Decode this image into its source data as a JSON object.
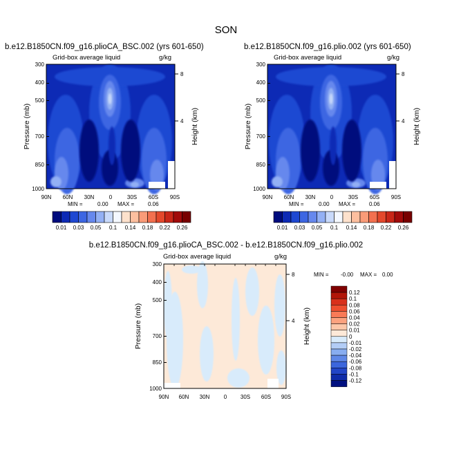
{
  "season": "SON",
  "panels": [
    {
      "id": "left",
      "title": "b.e12.B1850CN.f09_g16.plioCA_BSC.002 (yrs 601-650)",
      "variable": "Grid-box average liquid",
      "units": "g/kg",
      "stats": {
        "min_label": "MIN =",
        "min_value": "0.00",
        "max_label": "MAX =",
        "max_value": "0.06"
      }
    },
    {
      "id": "right",
      "title": "b.e12.B1850CN.f09_g16.plio.002 (yrs 601-650)",
      "variable": "Grid-box average liquid",
      "units": "g/kg",
      "stats": {
        "min_label": "MIN =",
        "min_value": "0.00",
        "max_label": "MAX =",
        "max_value": "0.06"
      }
    },
    {
      "id": "diff",
      "title": "b.e12.B1850CN.f09_g16.plioCA_BSC.002 - b.e12.B1850CN.f09_g16.plio.002",
      "variable": "Grid-box average liquid",
      "units": "g/kg",
      "stats": {
        "min_label": "MIN =",
        "min_value": "-0.00",
        "max_label": "MAX =",
        "max_value": "0.00"
      }
    }
  ],
  "axes": {
    "ylabel": "Pressure (mb)",
    "ylabel_right": "Height (km)",
    "pressure_ticks": [
      "300",
      "400",
      "500",
      "700",
      "850",
      "1000"
    ],
    "pressure_values": [
      300,
      400,
      500,
      700,
      850,
      1000
    ],
    "height_ticks": [
      "8",
      "4"
    ],
    "height_values_km": [
      8,
      4
    ],
    "lat_ticks": [
      "90N",
      "60N",
      "30N",
      "0",
      "30S",
      "60S",
      "90S"
    ],
    "lat_values": [
      90,
      60,
      30,
      0,
      -30,
      -60,
      -90
    ]
  },
  "colorbar_main": {
    "labels": [
      "0.01",
      "0.03",
      "0.05",
      "0.1",
      "0.14",
      "0.18",
      "0.22",
      "0.26"
    ],
    "colors": [
      "#000c7d",
      "#0d2ab5",
      "#1e48d2",
      "#3d66e2",
      "#6688ed",
      "#93b0f4",
      "#c8d9fa",
      "#f4f8ff",
      "#fde1cc",
      "#fcbf9f",
      "#f99b78",
      "#f2704f",
      "#e3482c",
      "#c82618",
      "#a10a0a",
      "#780000"
    ]
  },
  "colorbar_diff": {
    "labels": [
      "0.12",
      "0.1",
      "0.08",
      "0.06",
      "0.04",
      "0.02",
      "0.01",
      "0",
      "-0.01",
      "-0.02",
      "-0.04",
      "-0.06",
      "-0.08",
      "-0.1",
      "-0.12"
    ],
    "colors": [
      "#800000",
      "#b11508",
      "#d8301b",
      "#ee4f2f",
      "#f97a57",
      "#fca27f",
      "#fdc7a9",
      "#fde9d8",
      "#d8ebfb",
      "#b3cdf6",
      "#88adf0",
      "#5f88e7",
      "#3c66dc",
      "#2245c6",
      "#0f2ba8",
      "#001080"
    ]
  },
  "chart_data": [
    {
      "type": "heatmap",
      "title": "b.e12.B1850CN.f09_g16.plioCA_BSC.002 (yrs 601-650)",
      "subtitle": "Grid-box average liquid (g/kg)",
      "xlabel": "",
      "ylabel": "Pressure (mb)",
      "ylabel_right": "Height (km)",
      "xlim": [
        90,
        -90
      ],
      "ylim": [
        1000,
        300
      ],
      "min": 0.0,
      "max": 0.06,
      "features": [
        {
          "lat": 2,
          "p": 500,
          "value": 0.06,
          "desc": "tropical maximum"
        },
        {
          "lat": 50,
          "p": 780,
          "value": 0.03
        },
        {
          "lat": -50,
          "p": 780,
          "value": 0.03
        },
        {
          "lat": 75,
          "p": 950,
          "value": 0.05
        },
        {
          "lat": -25,
          "p": 980,
          "value": 0.04
        }
      ]
    },
    {
      "type": "heatmap",
      "title": "b.e12.B1850CN.f09_g16.plio.002 (yrs 601-650)",
      "subtitle": "Grid-box average liquid (g/kg)",
      "xlabel": "",
      "ylabel": "Pressure (mb)",
      "ylabel_right": "Height (km)",
      "xlim": [
        90,
        -90
      ],
      "ylim": [
        1000,
        300
      ],
      "min": 0.0,
      "max": 0.06,
      "features": [
        {
          "lat": 2,
          "p": 500,
          "value": 0.06,
          "desc": "tropical maximum"
        },
        {
          "lat": 50,
          "p": 780,
          "value": 0.03
        },
        {
          "lat": -50,
          "p": 780,
          "value": 0.03
        },
        {
          "lat": 75,
          "p": 950,
          "value": 0.05
        },
        {
          "lat": -25,
          "p": 980,
          "value": 0.04
        }
      ]
    },
    {
      "type": "heatmap",
      "title": "b.e12.B1850CN.f09_g16.plioCA_BSC.002 - b.e12.B1850CN.f09_g16.plio.002",
      "subtitle": "Grid-box average liquid (g/kg)",
      "xlabel": "",
      "ylabel": "Pressure (mb)",
      "ylabel_right": "Height (km)",
      "xlim": [
        90,
        -90
      ],
      "ylim": [
        1000,
        300
      ],
      "min": -0.0,
      "max": 0.0,
      "features": [
        {
          "lat": 60,
          "p": 650,
          "value": -0.005
        },
        {
          "lat": 5,
          "p": 600,
          "value": 0.005
        },
        {
          "lat": -40,
          "p": 700,
          "value": -0.005
        }
      ]
    }
  ]
}
